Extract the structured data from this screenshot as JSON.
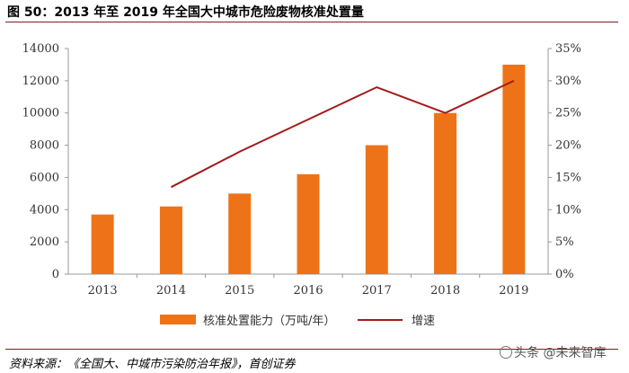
{
  "figure": {
    "title": "图 50：2013 年至 2019 年全国大中城市危险废物核准处置量",
    "source": "资料来源：《全国大、中城市污染防治年报》，首创证券",
    "watermark": "头条 @未来智库"
  },
  "chart_data": {
    "type": "bar",
    "categories": [
      "2013",
      "2014",
      "2015",
      "2016",
      "2017",
      "2018",
      "2019"
    ],
    "series": [
      {
        "name": "核准处置能力（万吨/年）",
        "type": "bar",
        "axis": "left",
        "values": [
          3700,
          4200,
          5000,
          6200,
          8000,
          10000,
          13000
        ]
      },
      {
        "name": "增速",
        "type": "line",
        "axis": "right",
        "values": [
          null,
          0.135,
          0.19,
          0.24,
          0.29,
          0.25,
          0.3
        ]
      }
    ],
    "ylim": [
      0,
      14000
    ],
    "yticks": [
      0,
      2000,
      4000,
      6000,
      8000,
      10000,
      12000,
      14000
    ],
    "y2lim": [
      0,
      0.35
    ],
    "y2ticks": [
      "0%",
      "5%",
      "10%",
      "15%",
      "20%",
      "25%",
      "30%",
      "35%"
    ],
    "colors": {
      "bar": "#ee7318",
      "line": "#a31a1a"
    },
    "legend_position": "bottom",
    "grid": false
  }
}
